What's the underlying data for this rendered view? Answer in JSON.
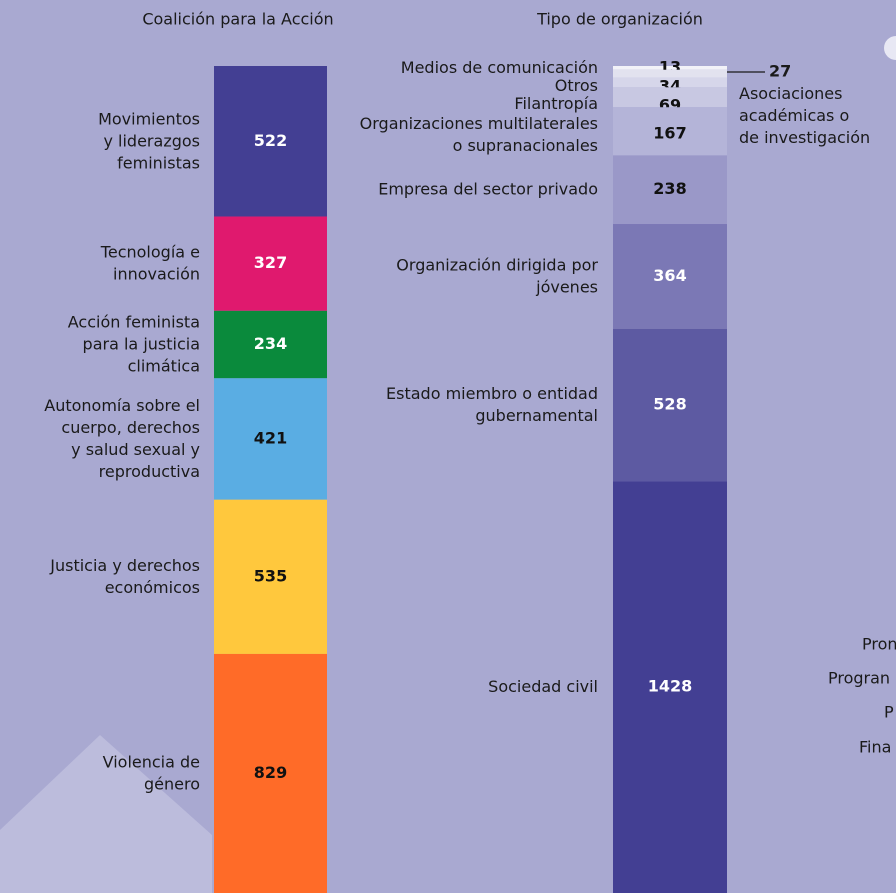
{
  "chart_data": [
    {
      "type": "stacked_bar",
      "title": "Coalición para la Acción",
      "categories": [
        "Movimientos\ny liderazgos\nfeministas",
        "Tecnología e\ninnovación",
        "Acción feminista\npara la justicia\nclimática",
        "Autonomía sobre el\ncuerpo, derechos\ny salud sexual y\nreproductiva",
        "Justicia y derechos\neconómicos",
        "Violencia de\ngénero"
      ],
      "values": [
        522,
        327,
        234,
        421,
        535,
        829
      ],
      "colors": [
        "#433f93",
        "#e0196e",
        "#0a8a3c",
        "#5aade3",
        "#ffc83d",
        "#ff6b28"
      ]
    },
    {
      "type": "stacked_bar",
      "title": "Tipo de organización",
      "categories": [
        "Medios de comunicación",
        "Asociaciones\nacadémicas o\nde investigación",
        "Otros",
        "Filantropía",
        "Organizaciones multilaterales\no supranacionales",
        "Empresa del sector privado",
        "Organización dirigida por\njóvenes",
        "Estado miembro o entidad\ngubernamental",
        "Sociedad civil"
      ],
      "values": [
        13,
        27,
        34,
        69,
        167,
        238,
        364,
        528,
        1428
      ],
      "colors": [
        "#f2f2f8",
        "#e2e2ef",
        "#d6d6ea",
        "#c8c8e2",
        "#b4b4d8",
        "#9a98c8",
        "#7b78b5",
        "#5d5aa2",
        "#433f93"
      ],
      "callout": 1
    }
  ],
  "clipped_texts": [
    "Pron",
    "Progran",
    "P",
    "Fina"
  ]
}
